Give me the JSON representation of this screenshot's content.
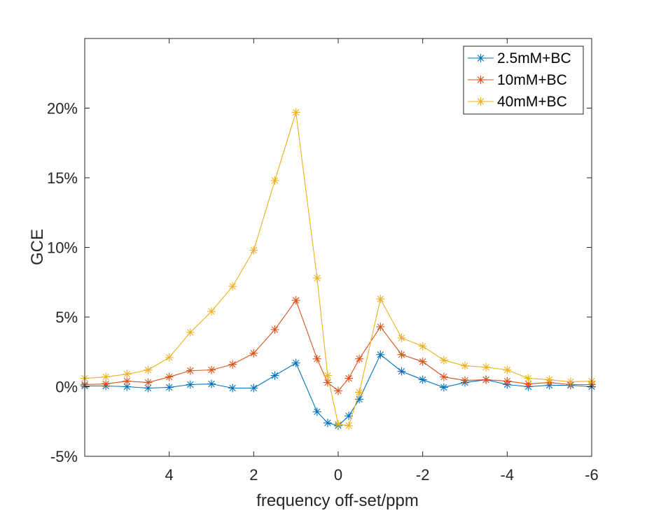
{
  "chart_data": {
    "type": "line",
    "title": "",
    "xlabel": "frequency off-set/ppm",
    "ylabel": "GCE",
    "xlim": [
      6,
      -6
    ],
    "ylim": [
      -5,
      25
    ],
    "x_reversed": true,
    "xticks": [
      4,
      2,
      0,
      -2,
      -4,
      -6
    ],
    "xtick_labels": [
      "4",
      "2",
      "0",
      "-2",
      "-4",
      "-6"
    ],
    "yticks": [
      -5,
      0,
      5,
      10,
      15,
      20
    ],
    "ytick_labels": [
      "-5%",
      "0%",
      "5%",
      "10%",
      "15%",
      "20%"
    ],
    "grid": false,
    "legend_position": "top-right",
    "marker": "asterisk",
    "x": [
      6,
      5.5,
      5,
      4.5,
      4,
      3.5,
      3,
      2.5,
      2,
      1.5,
      1,
      0.5,
      0.25,
      0,
      -0.25,
      -0.5,
      -1,
      -1.5,
      -2,
      -2.5,
      -3,
      -3.5,
      -4,
      -4.5,
      -5,
      -5.5,
      -6
    ],
    "series": [
      {
        "name": "2.5mM+BC",
        "color": "#0072BD",
        "values": [
          0.05,
          0.05,
          0.0,
          -0.1,
          -0.05,
          0.15,
          0.2,
          -0.1,
          -0.1,
          0.8,
          1.7,
          -1.8,
          -2.6,
          -2.8,
          -2.1,
          -0.9,
          2.3,
          1.1,
          0.5,
          -0.05,
          0.3,
          0.5,
          0.15,
          0.0,
          0.1,
          0.1,
          0.0
        ]
      },
      {
        "name": "10mM+BC",
        "color": "#D95319",
        "values": [
          0.15,
          0.2,
          0.4,
          0.3,
          0.7,
          1.15,
          1.2,
          1.6,
          2.4,
          4.1,
          6.2,
          2.0,
          0.3,
          -0.3,
          0.6,
          2.0,
          4.3,
          2.3,
          1.8,
          0.7,
          0.45,
          0.5,
          0.4,
          0.2,
          0.3,
          0.15,
          0.15
        ]
      },
      {
        "name": "40mM+BC",
        "color": "#EDB120",
        "values": [
          0.6,
          0.7,
          0.9,
          1.2,
          2.1,
          3.9,
          5.4,
          7.2,
          9.8,
          14.8,
          19.7,
          7.8,
          0.8,
          -2.7,
          -2.8,
          -0.4,
          6.3,
          3.5,
          2.9,
          1.9,
          1.5,
          1.4,
          1.2,
          0.6,
          0.5,
          0.35,
          0.4
        ]
      }
    ]
  }
}
